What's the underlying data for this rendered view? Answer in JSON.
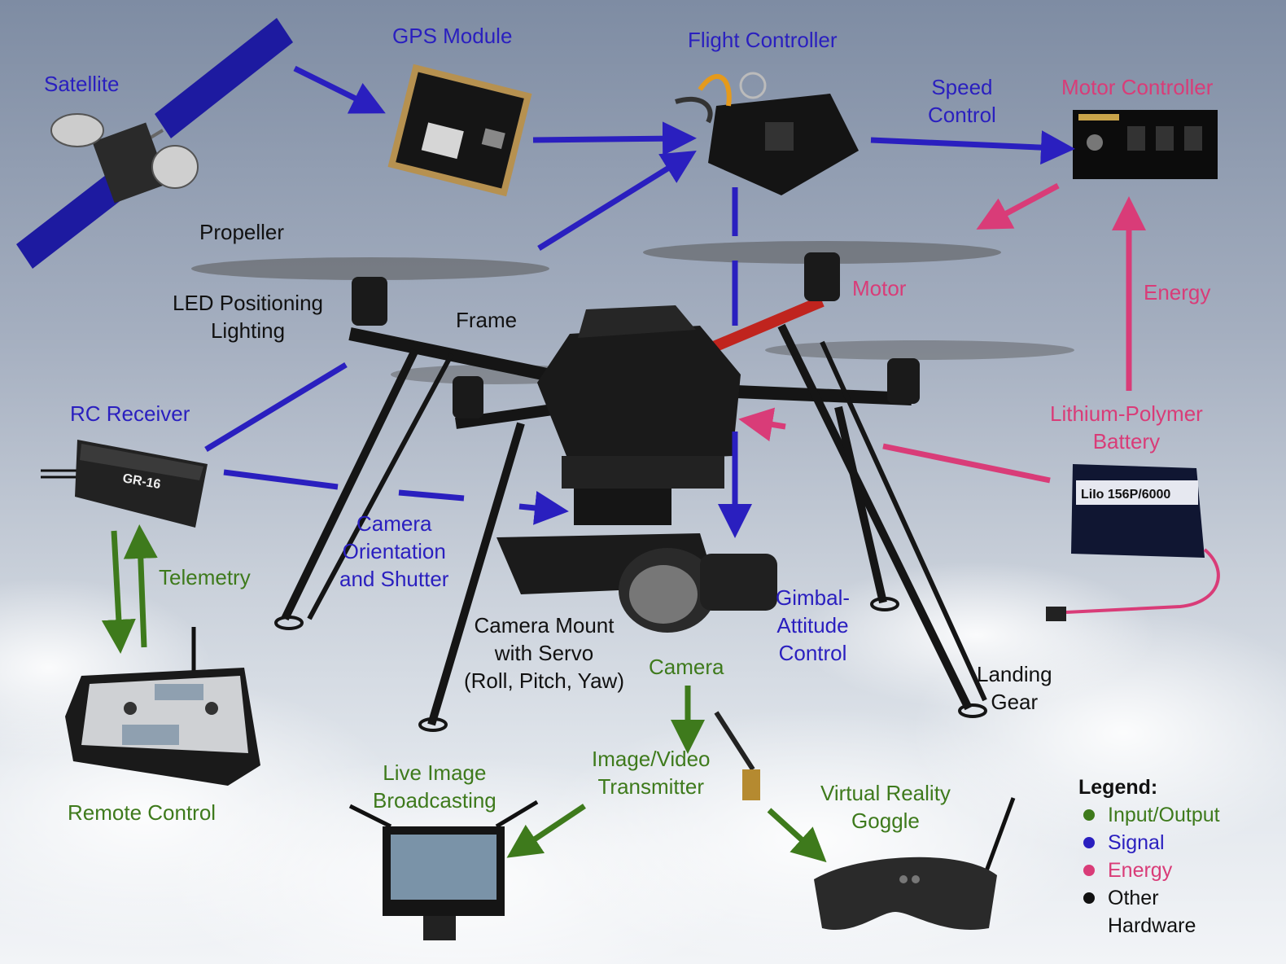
{
  "labels": {
    "satellite": "Satellite",
    "gps_module": "GPS Module",
    "flight_controller": "Flight Controller",
    "speed_control": "Speed\nControl",
    "motor_controller": "Motor Controller",
    "propeller": "Propeller",
    "led_positioning_lighting": "LED Positioning\nLighting",
    "frame": "Frame",
    "motor": "Motor",
    "energy": "Energy",
    "rc_receiver": "RC Receiver",
    "lithium_polymer_battery": "Lithium-Polymer\nBattery",
    "camera_orientation_shutter": "Camera\nOrientation\nand Shutter",
    "telemetry": "Telemetry",
    "camera_mount": "Camera Mount\nwith Servo\n(Roll, Pitch, Yaw)",
    "camera": "Camera",
    "gimbal_attitude_control": "Gimbal-\nAttitude\nControl",
    "landing_gear": "Landing\nGear",
    "remote_control": "Remote Control",
    "live_image_broadcasting": "Live Image\nBroadcasting",
    "image_video_transmitter": "Image/Video\nTransmitter",
    "vr_goggle": "Virtual Reality\nGoggle"
  },
  "device_text": {
    "rc_receiver_model": "GR-16",
    "battery_model": "LiIo 156P/6000"
  },
  "legend": {
    "title": "Legend:",
    "items": [
      {
        "label": "Input/Output",
        "color": "#3e7a1c"
      },
      {
        "label": "Signal",
        "color": "#2a1fbf"
      },
      {
        "label": "Energy",
        "color": "#d93c78"
      },
      {
        "label": "Other\nHardware",
        "color": "#111111"
      }
    ]
  },
  "colors": {
    "signal": "#2a1fbf",
    "io": "#3e7a1c",
    "energy": "#d93c78",
    "hardware": "#111111"
  }
}
